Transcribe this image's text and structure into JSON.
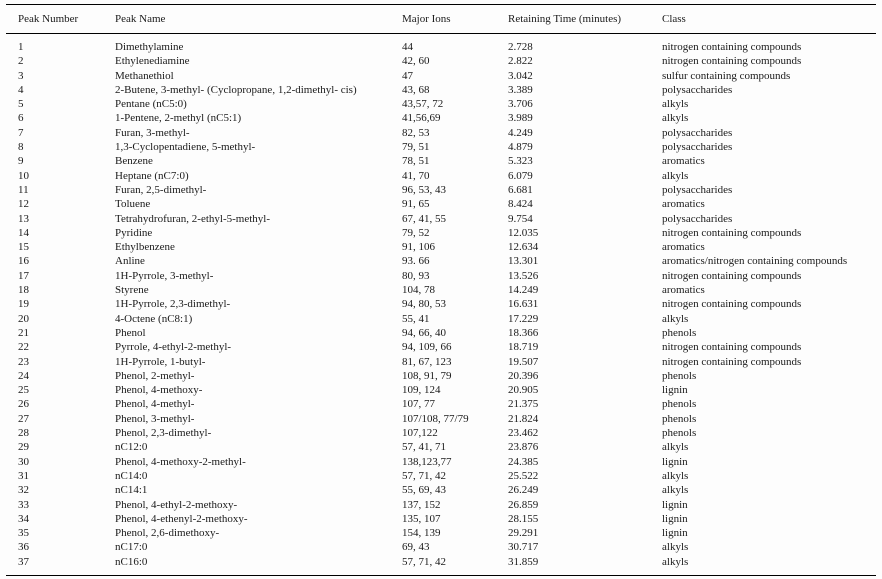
{
  "table": {
    "headers": [
      "Peak Number",
      "Peak Name",
      "Major Ions",
      "Retaining Time (minutes)",
      "Class"
    ],
    "rows": [
      [
        "1",
        "Dimethylamine",
        "44",
        "2.728",
        "nitrogen containing compounds"
      ],
      [
        "2",
        "Ethylenediamine",
        "42, 60",
        "2.822",
        "nitrogen containing compounds"
      ],
      [
        "3",
        "Methanethiol",
        "47",
        "3.042",
        "sulfur containing compounds"
      ],
      [
        "4",
        "2-Butene, 3-methyl- (Cyclopropane, 1,2-dimethyl- cis)",
        "43, 68",
        "3.389",
        "polysaccharides"
      ],
      [
        "5",
        "Pentane (nC5:0)",
        "43,57, 72",
        "3.706",
        "alkyls"
      ],
      [
        "6",
        "1-Pentene, 2-methyl (nC5:1)",
        "41,56,69",
        "3.989",
        "alkyls"
      ],
      [
        "7",
        "Furan, 3-methyl-",
        "82, 53",
        "4.249",
        "polysaccharides"
      ],
      [
        "8",
        "1,3-Cyclopentadiene, 5-methyl-",
        "79, 51",
        "4.879",
        "polysaccharides"
      ],
      [
        "9",
        "Benzene",
        "78, 51",
        "5.323",
        "aromatics"
      ],
      [
        "10",
        "Heptane (nC7:0)",
        "41, 70",
        "6.079",
        "alkyls"
      ],
      [
        "11",
        "Furan, 2,5-dimethyl-",
        "96, 53, 43",
        "6.681",
        "polysaccharides"
      ],
      [
        "12",
        "Toluene",
        "91, 65",
        "8.424",
        "aromatics"
      ],
      [
        "13",
        "Tetrahydrofuran, 2-ethyl-5-methyl-",
        "67, 41, 55",
        "9.754",
        "polysaccharides"
      ],
      [
        "14",
        "Pyridine",
        "79, 52",
        "12.035",
        "nitrogen containing compounds"
      ],
      [
        "15",
        "Ethylbenzene",
        "91, 106",
        "12.634",
        "aromatics"
      ],
      [
        "16",
        "Anline",
        "93. 66",
        "13.301",
        "aromatics/nitrogen containing compounds"
      ],
      [
        "17",
        "1H-Pyrrole, 3-methyl-",
        "80, 93",
        "13.526",
        "nitrogen containing compounds"
      ],
      [
        "18",
        "Styrene",
        "104, 78",
        "14.249",
        "aromatics"
      ],
      [
        "19",
        "1H-Pyrrole, 2,3-dimethyl-",
        "94, 80, 53",
        "16.631",
        "nitrogen containing compounds"
      ],
      [
        "20",
        "4-Octene (nC8:1)",
        "55, 41",
        "17.229",
        "alkyls"
      ],
      [
        "21",
        "Phenol",
        "94, 66, 40",
        "18.366",
        "phenols"
      ],
      [
        "22",
        "Pyrrole, 4-ethyl-2-methyl-",
        "94, 109, 66",
        "18.719",
        "nitrogen containing compounds"
      ],
      [
        "23",
        "1H-Pyrrole, 1-butyl-",
        "81, 67, 123",
        "19.507",
        "nitrogen containing compounds"
      ],
      [
        "24",
        "Phenol, 2-methyl-",
        "108, 91, 79",
        "20.396",
        "phenols"
      ],
      [
        "25",
        "Phenol, 4-methoxy-",
        "109, 124",
        "20.905",
        "lignin"
      ],
      [
        "26",
        "Phenol, 4-methyl-",
        "107, 77",
        "21.375",
        "phenols"
      ],
      [
        "27",
        "Phenol, 3-methyl-",
        "107/108, 77/79",
        "21.824",
        "phenols"
      ],
      [
        "28",
        "Phenol, 2,3-dimethyl-",
        "107,122",
        "23.462",
        "phenols"
      ],
      [
        "29",
        "nC12:0",
        "57, 41, 71",
        "23.876",
        "alkyls"
      ],
      [
        "30",
        "Phenol, 4-methoxy-2-methyl-",
        "138,123,77",
        "24.385",
        "lignin"
      ],
      [
        "31",
        "nC14:0",
        "57, 71, 42",
        "25.522",
        "alkyls"
      ],
      [
        "32",
        "nC14:1",
        "55, 69, 43",
        "26.249",
        "alkyls"
      ],
      [
        "33",
        "Phenol, 4-ethyl-2-methoxy-",
        "137, 152",
        "26.859",
        "lignin"
      ],
      [
        "34",
        "Phenol, 4-ethenyl-2-methoxy-",
        "135, 107",
        "28.155",
        "lignin"
      ],
      [
        "35",
        "Phenol, 2,6-dimethoxy-",
        "154, 139",
        "29.291",
        "lignin"
      ],
      [
        "36",
        "nC17:0",
        "69, 43",
        "30.717",
        "alkyls"
      ],
      [
        "37",
        "nC16:0",
        "57, 71, 42",
        "31.859",
        "alkyls"
      ]
    ],
    "column_keys": [
      "peak-number",
      "peak-name",
      "major-ions",
      "retaining-time",
      "class"
    ]
  },
  "colors": {
    "text": "#1a1a1a",
    "rule": "#000000",
    "background": "#fdfdfd"
  }
}
